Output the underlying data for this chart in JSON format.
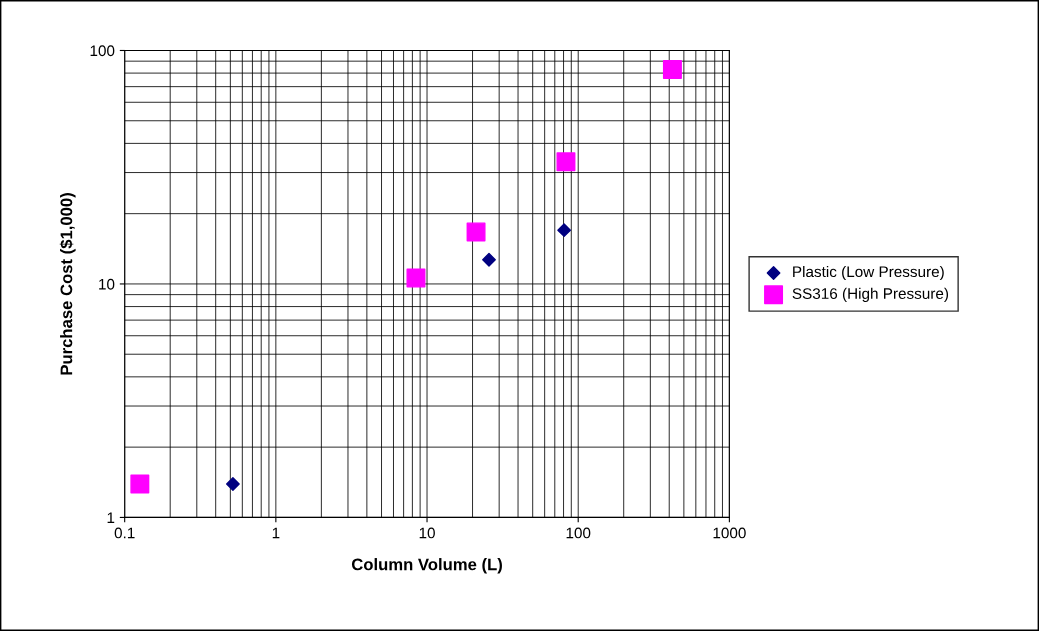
{
  "chart_data": {
    "type": "scatter",
    "xlabel": "Column Volume (L)",
    "ylabel": "Purchase Cost ($1,000)",
    "log": "xy",
    "xlim": [
      0.1,
      1000
    ],
    "ylim": [
      1,
      100
    ],
    "xticks": [
      0.1,
      1,
      10,
      100,
      1000
    ],
    "yticks": [
      1,
      10,
      100
    ],
    "grid": true,
    "legend": "right",
    "series": [
      {
        "name": "Plastic (Low Pressure)",
        "color": "#000080",
        "marker": "diamond",
        "x": [
          0.52,
          25.7,
          80.7
        ],
        "values": [
          1.39,
          12.7,
          17.0
        ]
      },
      {
        "name": "SS316 (High Pressure)",
        "color": "#ff00ff",
        "marker": "square",
        "x": [
          0.126,
          8.45,
          21.1,
          83,
          420
        ],
        "values": [
          1.39,
          10.6,
          16.7,
          33.4,
          82.9
        ]
      }
    ]
  }
}
